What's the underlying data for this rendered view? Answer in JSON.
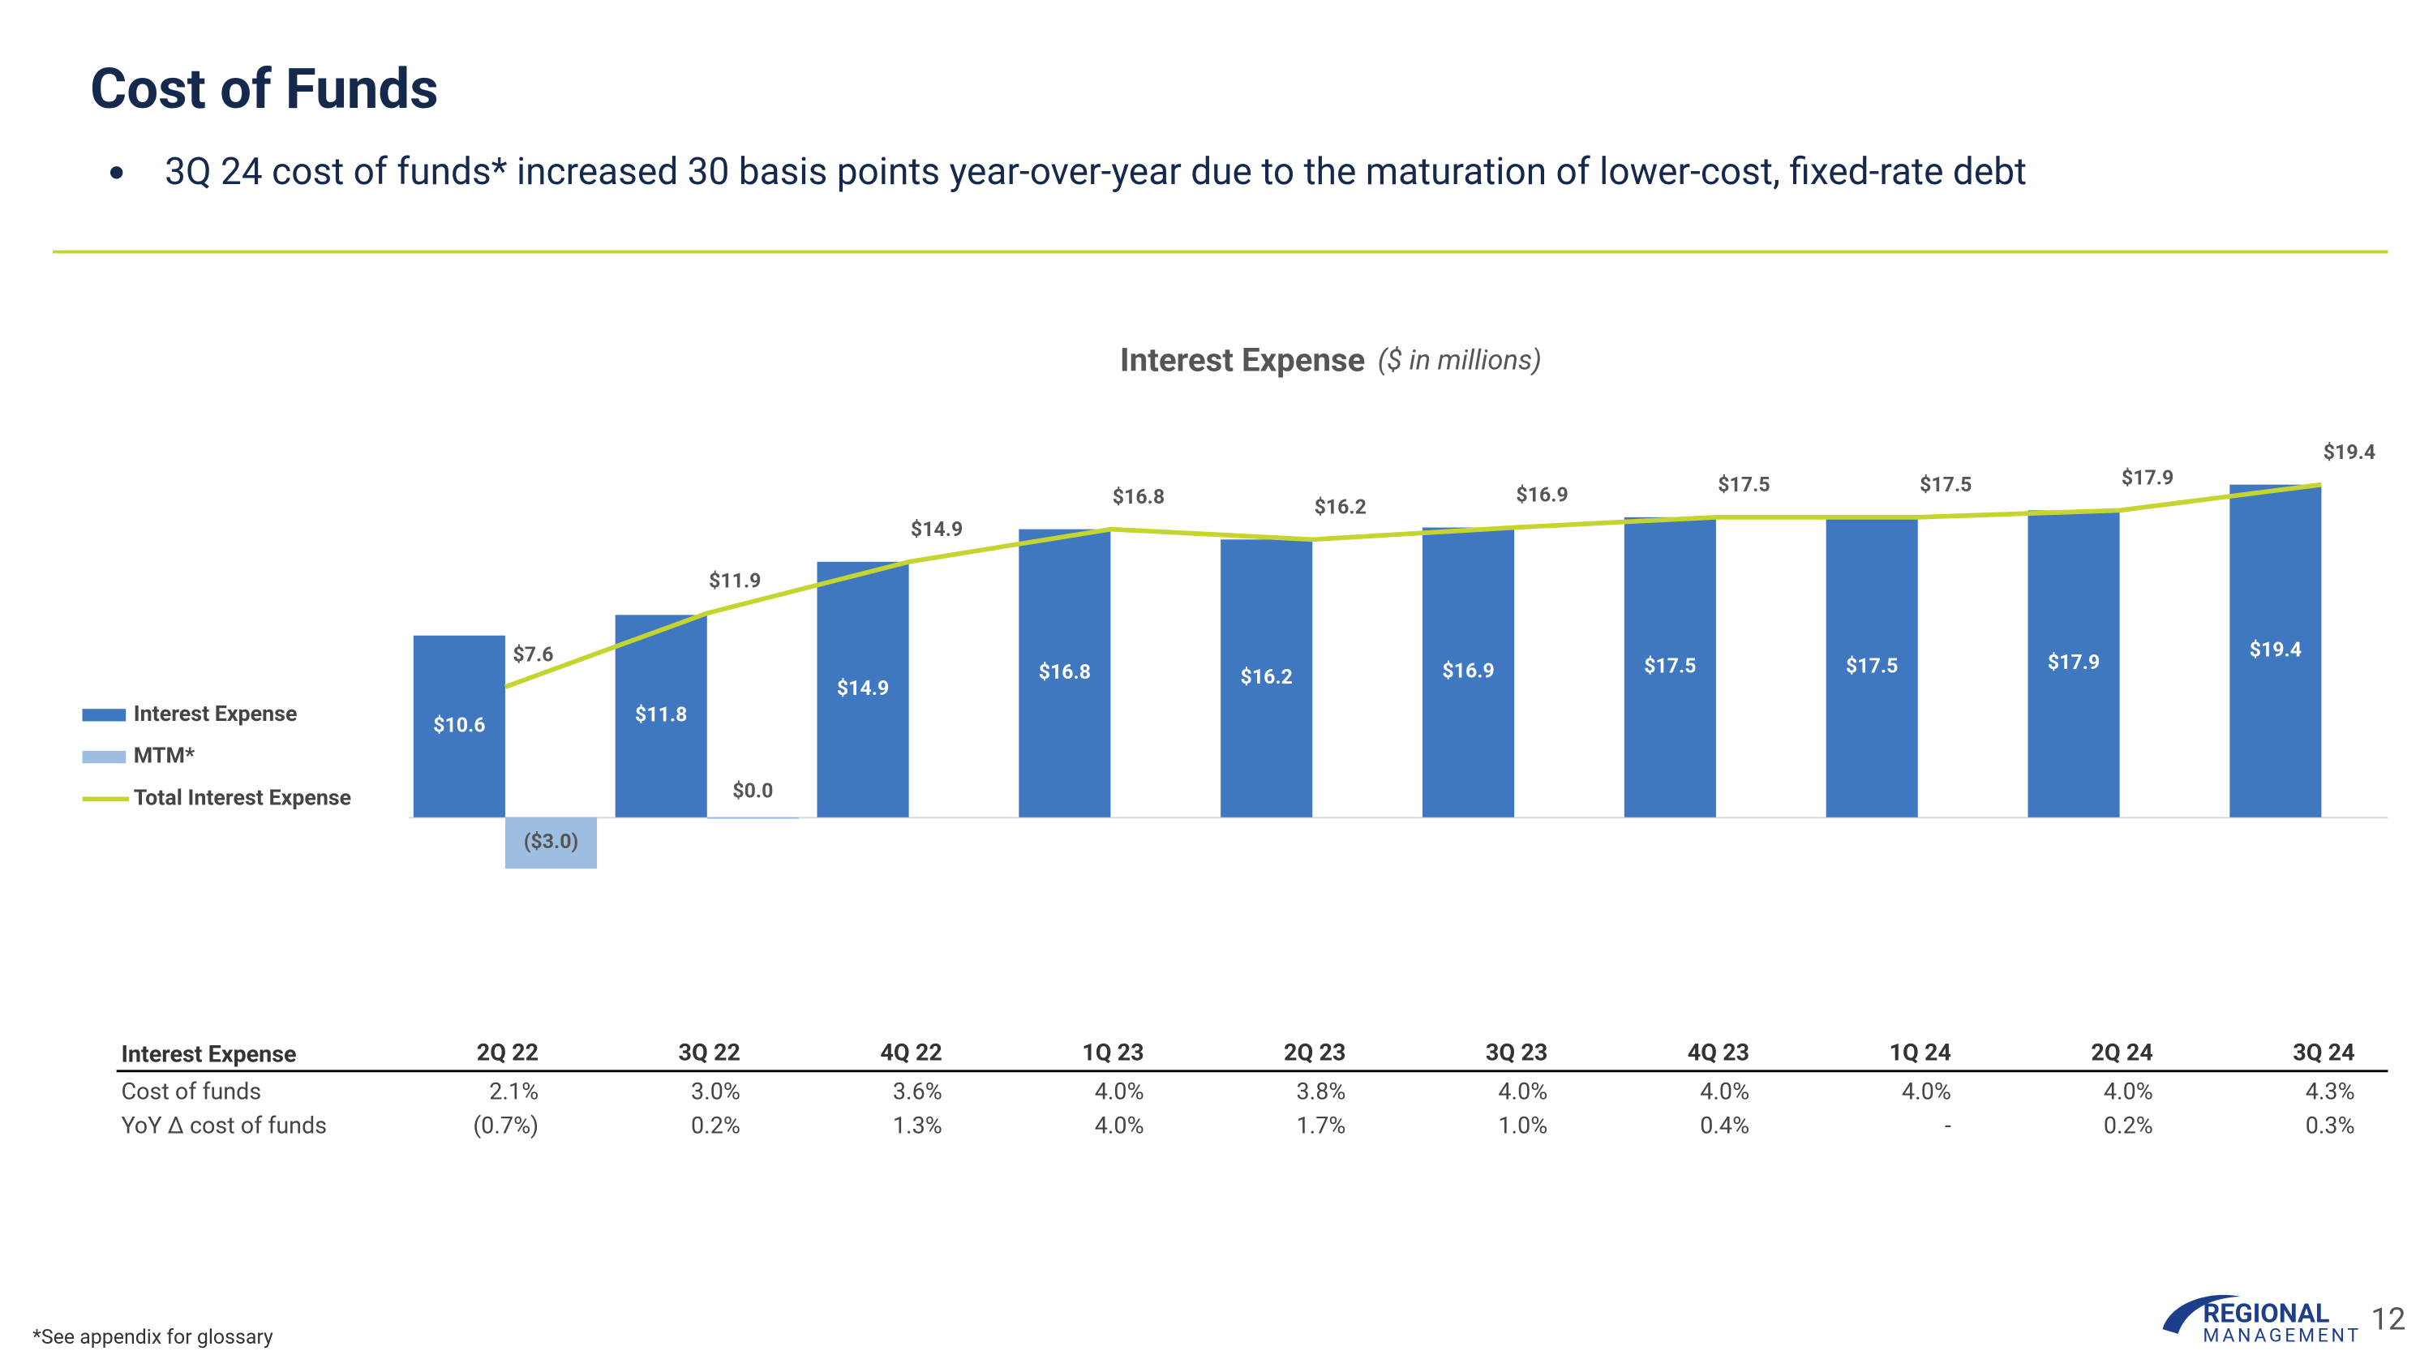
{
  "title": "Cost of Funds",
  "bullet": "3Q 24 cost of funds* increased 30 basis points year-over-year due to the maturation of lower-cost, fixed-rate debt",
  "chart_data": {
    "type": "bar",
    "title": "Interest Expense",
    "subtitle": "($ in millions)",
    "categories": [
      "2Q 22",
      "3Q 22",
      "4Q 22",
      "1Q 23",
      "2Q 23",
      "3Q 23",
      "4Q 23",
      "1Q 24",
      "2Q 24",
      "3Q 24"
    ],
    "ylim": [
      -10,
      25
    ],
    "series": [
      {
        "name": "Interest Expense",
        "color": "#3f78c1",
        "values": [
          10.6,
          11.8,
          14.9,
          16.8,
          16.2,
          16.9,
          17.5,
          17.5,
          17.9,
          19.4
        ],
        "value_labels": [
          "$10.6",
          "$11.8",
          "$14.9",
          "$16.8",
          "$16.2",
          "$16.9",
          "$17.5",
          "$17.5",
          "$17.9",
          "$19.4"
        ]
      },
      {
        "name": "MTM*",
        "color": "#9dbde3",
        "values": [
          -3.0,
          0.0,
          null,
          null,
          null,
          null,
          null,
          null,
          null,
          null
        ],
        "value_labels": [
          "($3.0)",
          "$0.0",
          null,
          null,
          null,
          null,
          null,
          null,
          null,
          null
        ]
      },
      {
        "name": "Total Interest Expense",
        "type": "line",
        "color": "#c5d52f",
        "values": [
          7.6,
          11.9,
          14.9,
          16.8,
          16.2,
          16.9,
          17.5,
          17.5,
          17.9,
          19.4
        ],
        "value_labels": [
          "$7.6",
          "$11.9",
          "$14.9",
          "$16.8",
          "$16.2",
          "$16.9",
          "$17.5",
          "$17.5",
          "$17.9",
          "$19.4"
        ]
      }
    ]
  },
  "table": {
    "corner": "Interest Expense",
    "rows": [
      {
        "label": "Cost of funds",
        "values": [
          "2.1%",
          "3.0%",
          "3.6%",
          "4.0%",
          "3.8%",
          "4.0%",
          "4.0%",
          "4.0%",
          "4.0%",
          "4.3%"
        ]
      },
      {
        "label": "YoY Δ cost of funds",
        "values": [
          "(0.7%)",
          "0.2%",
          "1.3%",
          "4.0%",
          "1.7%",
          "1.0%",
          "0.4%",
          "-",
          "0.2%",
          "0.3%"
        ]
      }
    ]
  },
  "footnote": "*See appendix for glossary",
  "page_number": "12",
  "logo": {
    "top": "REGIONAL",
    "bottom": "MANAGEMENT"
  }
}
